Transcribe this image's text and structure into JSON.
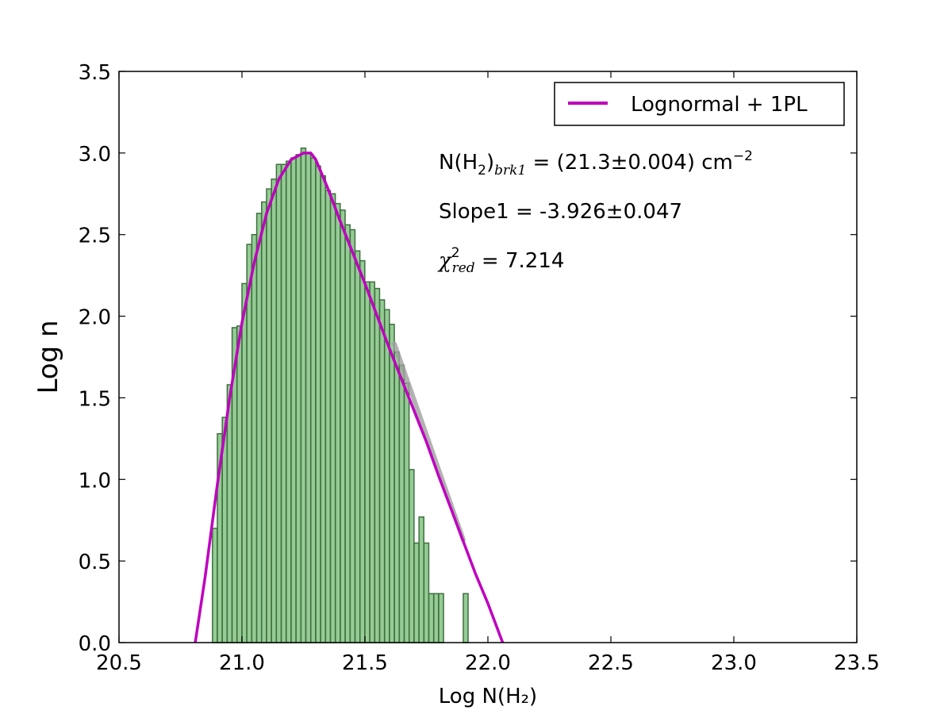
{
  "chart_data": {
    "type": "bar",
    "xlabel": "Log N(H₂)",
    "ylabel": "Log n",
    "xlim": [
      20.5,
      23.5
    ],
    "ylim": [
      0.0,
      3.5
    ],
    "x_ticks": [
      "20.5",
      "21.0",
      "21.5",
      "22.0",
      "22.5",
      "23.0",
      "23.5"
    ],
    "y_ticks": [
      "0.0",
      "0.5",
      "1.0",
      "1.5",
      "2.0",
      "2.5",
      "3.0",
      "3.5"
    ],
    "grid": false,
    "bar_color": "#8fc98f",
    "bar_edge_color": "#3f6f3f",
    "bin_width": 0.0195,
    "bins": {
      "x_left": [
        20.88,
        20.9,
        20.92,
        20.94,
        20.96,
        20.98,
        21.0,
        21.02,
        21.04,
        21.06,
        21.08,
        21.1,
        21.12,
        21.14,
        21.16,
        21.18,
        21.2,
        21.22,
        21.24,
        21.26,
        21.28,
        21.3,
        21.32,
        21.34,
        21.36,
        21.38,
        21.4,
        21.42,
        21.44,
        21.46,
        21.48,
        21.5,
        21.52,
        21.54,
        21.56,
        21.58,
        21.6,
        21.62,
        21.64,
        21.66,
        21.68,
        21.7,
        21.72,
        21.74,
        21.76,
        21.78,
        21.8,
        21.9
      ],
      "log_n": [
        0.7,
        1.28,
        1.38,
        1.58,
        1.93,
        1.94,
        2.2,
        2.44,
        2.5,
        2.63,
        2.7,
        2.78,
        2.84,
        2.93,
        2.93,
        2.95,
        2.97,
        2.99,
        3.03,
        3.0,
        2.97,
        2.92,
        2.86,
        2.77,
        2.75,
        2.69,
        2.65,
        2.56,
        2.53,
        2.4,
        2.34,
        2.21,
        2.21,
        2.17,
        2.1,
        2.04,
        1.95,
        1.78,
        1.7,
        1.59,
        1.06,
        0.61,
        0.77,
        0.61,
        0.3,
        0.3,
        0.3,
        0.3
      ]
    },
    "series": [
      {
        "name": "Lognormal + 1PL",
        "type": "line",
        "color": "#bf00bf",
        "x": [
          20.81,
          20.85,
          20.9,
          20.95,
          21.0,
          21.05,
          21.1,
          21.15,
          21.2,
          21.25,
          21.28,
          21.3,
          21.35,
          21.4,
          21.45,
          21.5,
          21.55,
          21.6,
          21.65,
          21.7,
          21.75,
          21.8,
          21.85,
          21.9,
          21.95,
          22.0,
          22.06
        ],
        "y": [
          0.0,
          0.4,
          0.97,
          1.5,
          1.96,
          2.33,
          2.63,
          2.84,
          2.96,
          3.0,
          3.0,
          2.96,
          2.78,
          2.58,
          2.39,
          2.2,
          2.0,
          1.8,
          1.61,
          1.42,
          1.23,
          1.02,
          0.82,
          0.62,
          0.42,
          0.24,
          0.0
        ]
      }
    ],
    "shaded_fit": {
      "color": "#a0a0a0",
      "x": [
        21.62,
        21.9
      ],
      "y": [
        1.83,
        0.63
      ]
    },
    "legend": {
      "position": "top-right",
      "entries": [
        "Lognormal + 1PL"
      ]
    },
    "annotations": {
      "break": {
        "prefix": "N(H",
        "sub_2": "2",
        "close": ")",
        "sub_label": "brk1",
        "value": " = (21.3±0.004) cm",
        "sup": "−2"
      },
      "slope": "Slope1 = -3.926±0.047",
      "chi": {
        "symbol": "χ",
        "sup": "2",
        "sub": "red",
        "value": " = 7.214"
      }
    }
  }
}
